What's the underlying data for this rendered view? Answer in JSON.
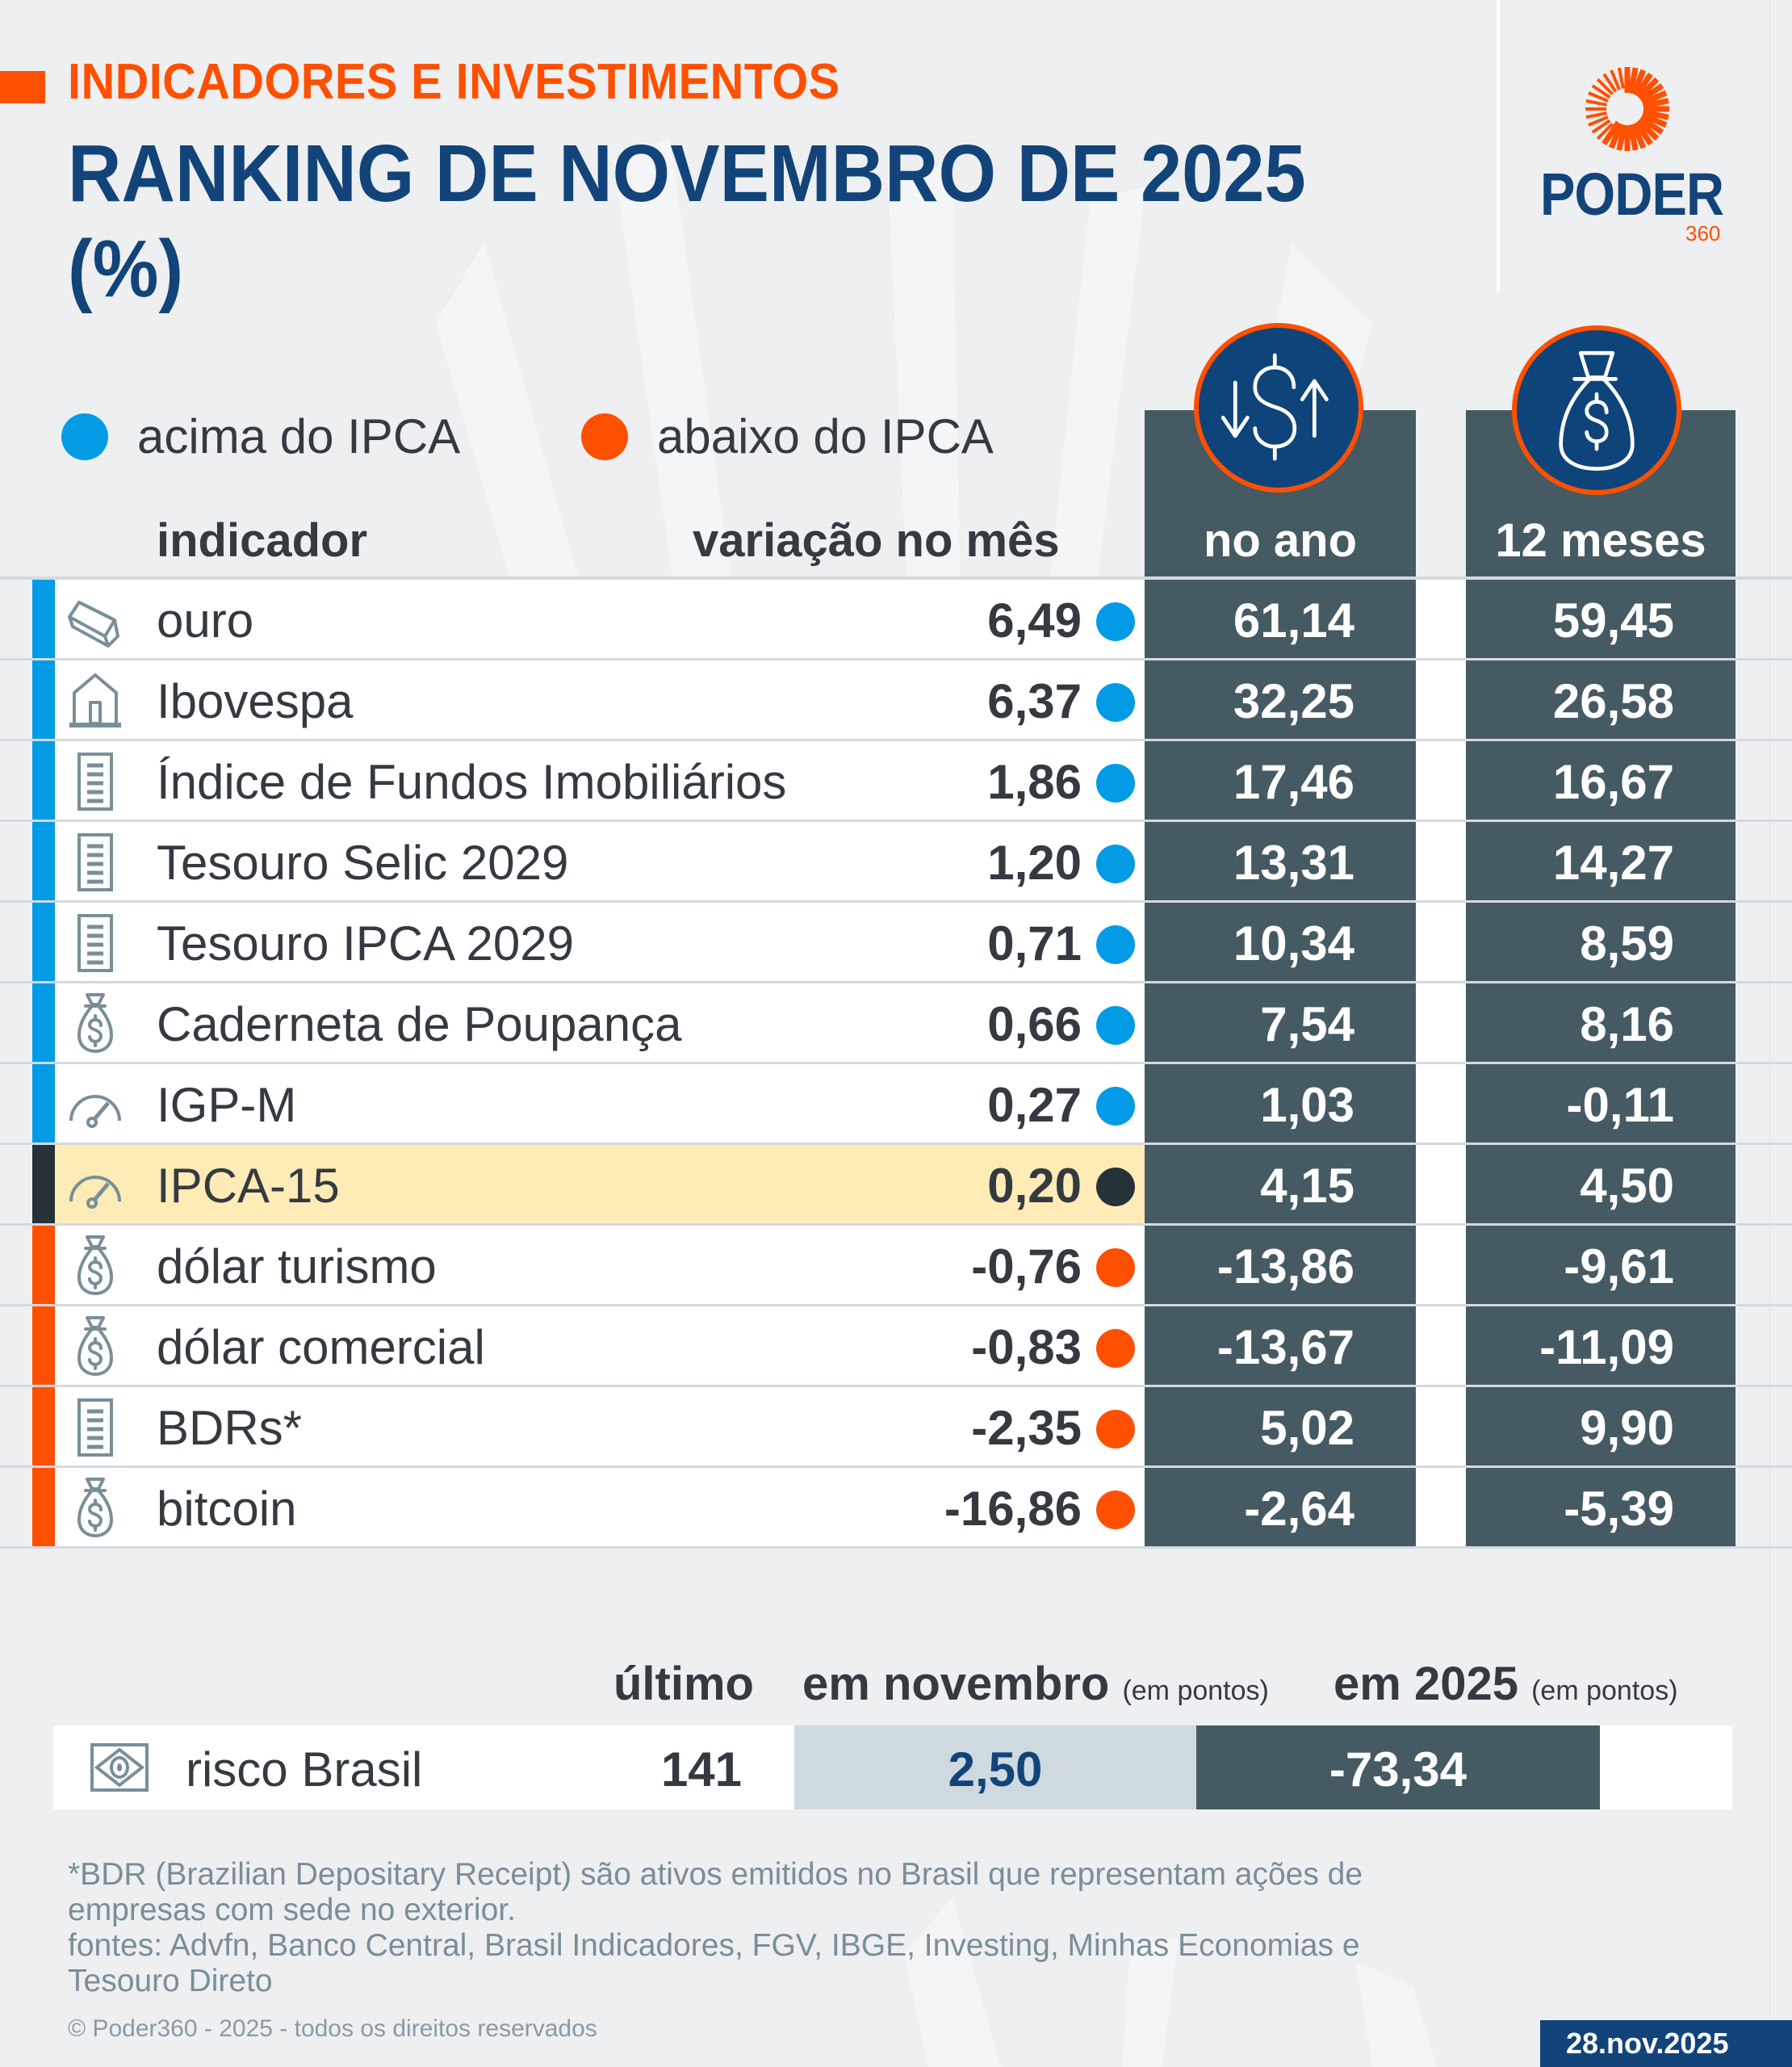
{
  "header": {
    "kicker": "INDICADORES E INVESTIMENTOS",
    "title": "RANKING DE NOVEMBRO DE 2025\n(%)"
  },
  "logo": {
    "word": "PODER",
    "number": "360"
  },
  "colors": {
    "above": "#039be5",
    "below": "#fe5000",
    "reference": "#263238",
    "highlight": "#feebb6",
    "dark_column": "#465a63",
    "brand_blue": "#12447a",
    "brand_orange": "#fe5000"
  },
  "legend": {
    "above_label": "acima do IPCA",
    "below_label": "abaixo do IPCA"
  },
  "columns": {
    "indicador": "indicador",
    "variacao": "variação no mês",
    "no_ano": "no ano",
    "doze_meses": "12 meses",
    "no_ano_icon": "currency-exchange-icon",
    "doze_meses_icon": "money-bag-icon"
  },
  "rows": [
    {
      "name": "ouro",
      "icon": "gold-bar-icon",
      "status": "above",
      "month": "6,49",
      "year": "61,14",
      "twelve": "59,45"
    },
    {
      "name": "Ibovespa",
      "icon": "stock-exchange-building-icon",
      "status": "above",
      "month": "6,37",
      "year": "32,25",
      "twelve": "26,58"
    },
    {
      "name": "Índice de Fundos Imobiliários",
      "icon": "document-list-icon",
      "status": "above",
      "month": "1,86",
      "year": "17,46",
      "twelve": "16,67"
    },
    {
      "name": "Tesouro Selic 2029",
      "icon": "document-list-icon",
      "status": "above",
      "month": "1,20",
      "year": "13,31",
      "twelve": "14,27"
    },
    {
      "name": "Tesouro IPCA 2029",
      "icon": "document-list-icon",
      "status": "above",
      "month": "0,71",
      "year": "10,34",
      "twelve": "8,59"
    },
    {
      "name": "Caderneta de Poupança",
      "icon": "money-bag-icon",
      "status": "above",
      "month": "0,66",
      "year": "7,54",
      "twelve": "8,16"
    },
    {
      "name": "IGP-M",
      "icon": "gauge-icon",
      "status": "above",
      "month": "0,27",
      "year": "1,03",
      "twelve": "-0,11"
    },
    {
      "name": "IPCA-15",
      "icon": "gauge-icon",
      "status": "reference",
      "month": "0,20",
      "year": "4,15",
      "twelve": "4,50"
    },
    {
      "name": "dólar turismo",
      "icon": "money-bag-icon",
      "status": "below",
      "month": "-0,76",
      "year": "-13,86",
      "twelve": "-9,61"
    },
    {
      "name": "dólar comercial",
      "icon": "money-bag-icon",
      "status": "below",
      "month": "-0,83",
      "year": "-13,67",
      "twelve": "-11,09"
    },
    {
      "name": "BDRs*",
      "icon": "document-list-icon",
      "status": "below",
      "month": "-2,35",
      "year": "5,02",
      "twelve": "9,90"
    },
    {
      "name": "bitcoin",
      "icon": "money-bag-icon",
      "status": "below",
      "month": "-16,86",
      "year": "-2,64",
      "twelve": "-5,39"
    }
  ],
  "risco_brasil": {
    "header_ultimo": "último",
    "header_nov": "em novembro",
    "header_nov_unit": "(em pontos)",
    "header_ano": "em 2025",
    "header_ano_unit": "(em pontos)",
    "name": "risco Brasil",
    "icon": "brazil-flag-icon",
    "ultimo": "141",
    "em_novembro": "2,50",
    "em_2025": "-73,34"
  },
  "footer": {
    "note": "*BDR (Brazilian Depositary Receipt) são ativos emitidos no Brasil que representam ações de empresas com sede no exterior.",
    "sources": "fontes: Advfn, Banco Central, Brasil Indicadores, FGV, IBGE, Investing, Minhas Economias e Tesouro Direto",
    "copyright": "© Poder360 - 2025 - todos os direitos reservados",
    "date": "28.nov.2025"
  }
}
